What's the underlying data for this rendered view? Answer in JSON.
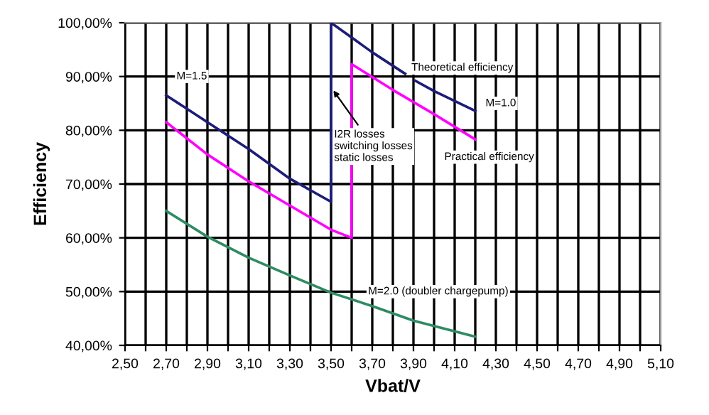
{
  "chart_data": {
    "type": "line",
    "xlabel": "Vbat/V",
    "ylabel": "Efficiency",
    "series": [
      {
        "color": "#1c1c7a",
        "x": [
          2.7,
          2.9,
          3.1,
          3.3,
          3.5,
          3.5,
          3.7,
          3.86,
          3.88,
          3.91,
          4.0,
          4.2
        ],
        "values": [
          86.5,
          81.5,
          76.5,
          71,
          66.7,
          100,
          94.5,
          90.5,
          null,
          89.2,
          87.3,
          83.6
        ]
      },
      {
        "color": "#ff00ff",
        "x": [
          2.7,
          2.9,
          3.1,
          3.3,
          3.5,
          3.6,
          3.6,
          3.8,
          4.0,
          4.2
        ],
        "values": [
          81.5,
          75.5,
          70.5,
          66,
          61.5,
          60,
          92.3,
          87.5,
          83,
          78.3
        ]
      },
      {
        "color": "#2e8b62",
        "x": [
          2.7,
          2.9,
          3.1,
          3.3,
          3.5,
          3.7,
          3.9,
          4.1,
          4.2
        ],
        "values": [
          65,
          60.2,
          56.3,
          53,
          49.8,
          47.3,
          44.6,
          42.6,
          41.6
        ]
      }
    ],
    "xlim": [
      2.5,
      5.1
    ],
    "xticks": [
      {
        "value": 2.5,
        "label": "2,50"
      },
      {
        "value": 2.6,
        "label": null
      },
      {
        "value": 2.7,
        "label": "2,70"
      },
      {
        "value": 2.8,
        "label": null
      },
      {
        "value": 2.9,
        "label": "2,90"
      },
      {
        "value": 3.0,
        "label": null
      },
      {
        "value": 3.1,
        "label": "3,10"
      },
      {
        "value": 3.2,
        "label": null
      },
      {
        "value": 3.3,
        "label": "3,30"
      },
      {
        "value": 3.4,
        "label": null
      },
      {
        "value": 3.5,
        "label": "3,50"
      },
      {
        "value": 3.6,
        "label": null
      },
      {
        "value": 3.7,
        "label": "3,70"
      },
      {
        "value": 3.8,
        "label": null
      },
      {
        "value": 3.9,
        "label": "3,90"
      },
      {
        "value": 4.0,
        "label": null
      },
      {
        "value": 4.1,
        "label": "4,10"
      },
      {
        "value": 4.2,
        "label": null
      },
      {
        "value": 4.3,
        "label": "4,30"
      },
      {
        "value": 4.4,
        "label": null
      },
      {
        "value": 4.5,
        "label": "4,50"
      },
      {
        "value": 4.6,
        "label": null
      },
      {
        "value": 4.7,
        "label": "4,70"
      },
      {
        "value": 4.8,
        "label": null
      },
      {
        "value": 4.9,
        "label": "4,90"
      },
      {
        "value": 5.0,
        "label": null
      },
      {
        "value": 5.1,
        "label": "5,10"
      }
    ],
    "ylim": [
      40,
      100
    ],
    "yticks": [
      {
        "value": 40,
        "label": "40,00%"
      },
      {
        "value": 50,
        "label": "50,00%"
      },
      {
        "value": 60,
        "label": "60,00%"
      },
      {
        "value": 70,
        "label": "70,00%"
      },
      {
        "value": 80,
        "label": "80,00%"
      },
      {
        "value": 90,
        "label": "90,00%"
      },
      {
        "value": 100,
        "label": "100,00%"
      }
    ],
    "grid": true,
    "annotations": [
      "M=1.5",
      "Theoretical efficiency",
      "M=1.0",
      {
        "text": "I2R losses\nswitching losses\nstatic losses",
        "x": 3.5,
        "y": 88
      },
      "Practical efficiency",
      "M=2.0 (doubler chargepump)"
    ]
  }
}
